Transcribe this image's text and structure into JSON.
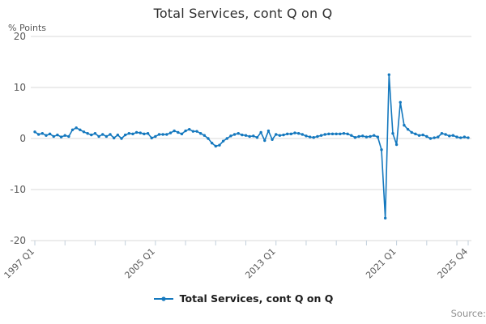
{
  "header": {
    "title": "Total Services, cont Q on Q"
  },
  "yaxis_unit_label": "% Points",
  "legend": {
    "label": "Total Services, cont Q on Q",
    "marker": "line-with-dot-icon"
  },
  "source_label": "Source:",
  "chart_data": {
    "type": "line",
    "title": "Total Services, cont Q on Q",
    "ylabel": "% Points",
    "ylim": [
      -20,
      20
    ],
    "yticks": [
      20,
      10,
      0,
      -10,
      -20
    ],
    "grid": true,
    "legend_position": "bottom",
    "line_color": "#1478be",
    "grid_color": "#d8d8d8",
    "tick_color": "#c2cfdb",
    "label_color": "#595959",
    "x_start": "1997 Q1",
    "x_end": "2025 Q4",
    "x_minor_tick_every": 8,
    "x_labels": [
      {
        "index": 0,
        "label": "1997 Q1"
      },
      {
        "index": 32,
        "label": "2005 Q1"
      },
      {
        "index": 64,
        "label": "2013 Q1"
      },
      {
        "index": 96,
        "label": "2021 Q1"
      },
      {
        "index": 115,
        "label": "2025 Q4"
      }
    ],
    "series": [
      {
        "name": "Total Services, cont Q on Q",
        "frequency": "quarterly",
        "values": [
          1.3,
          0.8,
          1.0,
          0.6,
          0.9,
          0.4,
          0.7,
          0.3,
          0.6,
          0.4,
          1.7,
          2.1,
          1.7,
          1.3,
          1.0,
          0.7,
          1.0,
          0.4,
          0.8,
          0.4,
          0.8,
          0.1,
          0.7,
          0.0,
          0.7,
          1.0,
          0.9,
          1.2,
          1.1,
          0.9,
          1.0,
          0.1,
          0.4,
          0.8,
          0.8,
          0.8,
          1.1,
          1.5,
          1.2,
          0.9,
          1.5,
          1.8,
          1.4,
          1.4,
          1.0,
          0.6,
          0.0,
          -0.9,
          -1.5,
          -1.3,
          -0.5,
          0.0,
          0.5,
          0.8,
          1.0,
          0.7,
          0.6,
          0.4,
          0.5,
          0.2,
          1.2,
          -0.4,
          1.5,
          -0.2,
          0.8,
          0.6,
          0.7,
          0.9,
          0.9,
          1.1,
          1.0,
          0.8,
          0.5,
          0.3,
          0.2,
          0.4,
          0.6,
          0.8,
          0.9,
          0.9,
          0.9,
          0.9,
          1.0,
          0.9,
          0.6,
          0.2,
          0.4,
          0.5,
          0.3,
          0.4,
          0.6,
          0.3,
          -2.2,
          -15.6,
          12.5,
          1.0,
          -1.2,
          7.1,
          2.6,
          1.8,
          1.2,
          0.9,
          0.6,
          0.7,
          0.4,
          0.0,
          0.15,
          0.3,
          1.0,
          0.8,
          0.5,
          0.6,
          0.3,
          0.15,
          0.3,
          0.15
        ]
      }
    ]
  }
}
